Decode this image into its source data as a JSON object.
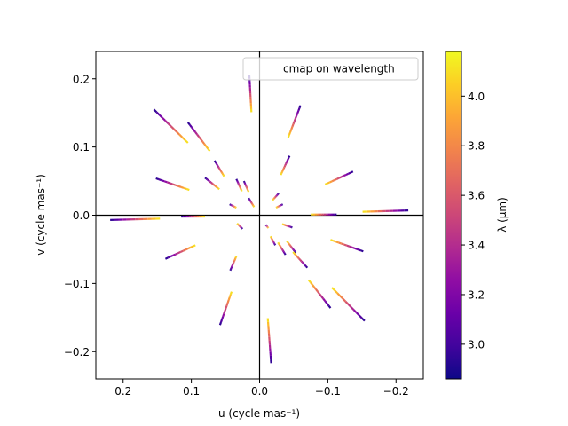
{
  "chart_data": {
    "type": "line",
    "title": "",
    "xlabel": "u (cycle mas⁻¹)",
    "ylabel": "v (cycle mas⁻¹)",
    "xlim": [
      0.24,
      -0.24
    ],
    "ylim": [
      -0.24,
      0.24
    ],
    "x_ticks": [
      0.2,
      0.1,
      0.0,
      -0.1,
      -0.2
    ],
    "x_tick_labels": [
      "0.2",
      "0.1",
      "0.0",
      "−0.1",
      "−0.2"
    ],
    "y_ticks": [
      -0.2,
      -0.1,
      0.0,
      0.1,
      0.2
    ],
    "y_tick_labels": [
      "−0.2",
      "−0.1",
      "0.0",
      "0.1",
      "0.2"
    ],
    "axis_lines": {
      "x0": true,
      "y0": true
    },
    "grid": false,
    "legend": {
      "label": "cmap on wavelength",
      "placement": "upper right"
    },
    "colorbar": {
      "label": "λ (µm)",
      "min": 2.86,
      "max": 4.18,
      "ticks": [
        3.0,
        3.2,
        3.4,
        3.6,
        3.8,
        4.0
      ],
      "tick_labels": [
        "3.0",
        "3.2",
        "3.4",
        "3.6",
        "3.8",
        "4.0"
      ],
      "colormap": "plasma"
    },
    "wavelength_range": [
      2.9,
      4.15
    ],
    "series": [
      {
        "start": [
          0.155,
          0.155
        ],
        "end": [
          0.105,
          0.106
        ]
      },
      {
        "start": [
          0.105,
          0.136
        ],
        "end": [
          0.073,
          0.094
        ]
      },
      {
        "start": [
          0.152,
          0.054
        ],
        "end": [
          0.103,
          0.037
        ]
      },
      {
        "start": [
          0.066,
          0.08
        ],
        "end": [
          0.052,
          0.057
        ]
      },
      {
        "start": [
          0.08,
          0.055
        ],
        "end": [
          0.059,
          0.038
        ]
      },
      {
        "start": [
          0.034,
          0.053
        ],
        "end": [
          0.026,
          0.035
        ]
      },
      {
        "start": [
          0.023,
          0.05
        ],
        "end": [
          0.016,
          0.034
        ]
      },
      {
        "start": [
          0.044,
          0.016
        ],
        "end": [
          0.034,
          0.011
        ]
      },
      {
        "start": [
          0.016,
          0.025
        ],
        "end": [
          0.008,
          0.012
        ]
      },
      {
        "start": [
          0.015,
          0.205
        ],
        "end": [
          0.012,
          0.151
        ]
      },
      {
        "start": [
          0.219,
          -0.007
        ],
        "end": [
          0.146,
          -0.005
        ]
      },
      {
        "start": [
          0.115,
          -0.002
        ],
        "end": [
          0.08,
          -0.002
        ]
      },
      {
        "start": [
          0.138,
          -0.064
        ],
        "end": [
          0.094,
          -0.044
        ]
      },
      {
        "start": [
          0.043,
          -0.081
        ],
        "end": [
          0.034,
          -0.06
        ]
      },
      {
        "start": [
          0.025,
          -0.02
        ],
        "end": [
          0.033,
          -0.012
        ]
      },
      {
        "start": [
          0.058,
          -0.161
        ],
        "end": [
          0.041,
          -0.112
        ]
      },
      {
        "start": [
          -0.06,
          0.161
        ],
        "end": [
          -0.042,
          0.114
        ]
      },
      {
        "start": [
          -0.044,
          0.087
        ],
        "end": [
          -0.031,
          0.059
        ]
      },
      {
        "start": [
          -0.028,
          0.032
        ],
        "end": [
          -0.019,
          0.022
        ]
      },
      {
        "start": [
          -0.034,
          0.016
        ],
        "end": [
          -0.024,
          0.011
        ]
      },
      {
        "start": [
          -0.137,
          0.064
        ],
        "end": [
          -0.096,
          0.045
        ]
      },
      {
        "start": [
          -0.113,
          0.001
        ],
        "end": [
          -0.075,
          0.001
        ]
      },
      {
        "start": [
          -0.218,
          0.007
        ],
        "end": [
          -0.151,
          0.005
        ]
      },
      {
        "start": [
          -0.053,
          -0.055
        ],
        "end": [
          -0.04,
          -0.038
        ]
      },
      {
        "start": [
          -0.048,
          -0.018
        ],
        "end": [
          -0.033,
          -0.013
        ]
      },
      {
        "start": [
          -0.009,
          -0.014
        ],
        "end": [
          -0.013,
          -0.019
        ]
      },
      {
        "start": [
          -0.023,
          -0.044
        ],
        "end": [
          -0.016,
          -0.031
        ]
      },
      {
        "start": [
          -0.038,
          -0.058
        ],
        "end": [
          -0.027,
          -0.04
        ]
      },
      {
        "start": [
          -0.07,
          -0.077
        ],
        "end": [
          -0.049,
          -0.054
        ]
      },
      {
        "start": [
          -0.152,
          -0.053
        ],
        "end": [
          -0.104,
          -0.036
        ]
      },
      {
        "start": [
          -0.104,
          -0.136
        ],
        "end": [
          -0.072,
          -0.095
        ]
      },
      {
        "start": [
          -0.154,
          -0.155
        ],
        "end": [
          -0.106,
          -0.106
        ]
      },
      {
        "start": [
          -0.017,
          -0.217
        ],
        "end": [
          -0.012,
          -0.151
        ]
      }
    ]
  }
}
